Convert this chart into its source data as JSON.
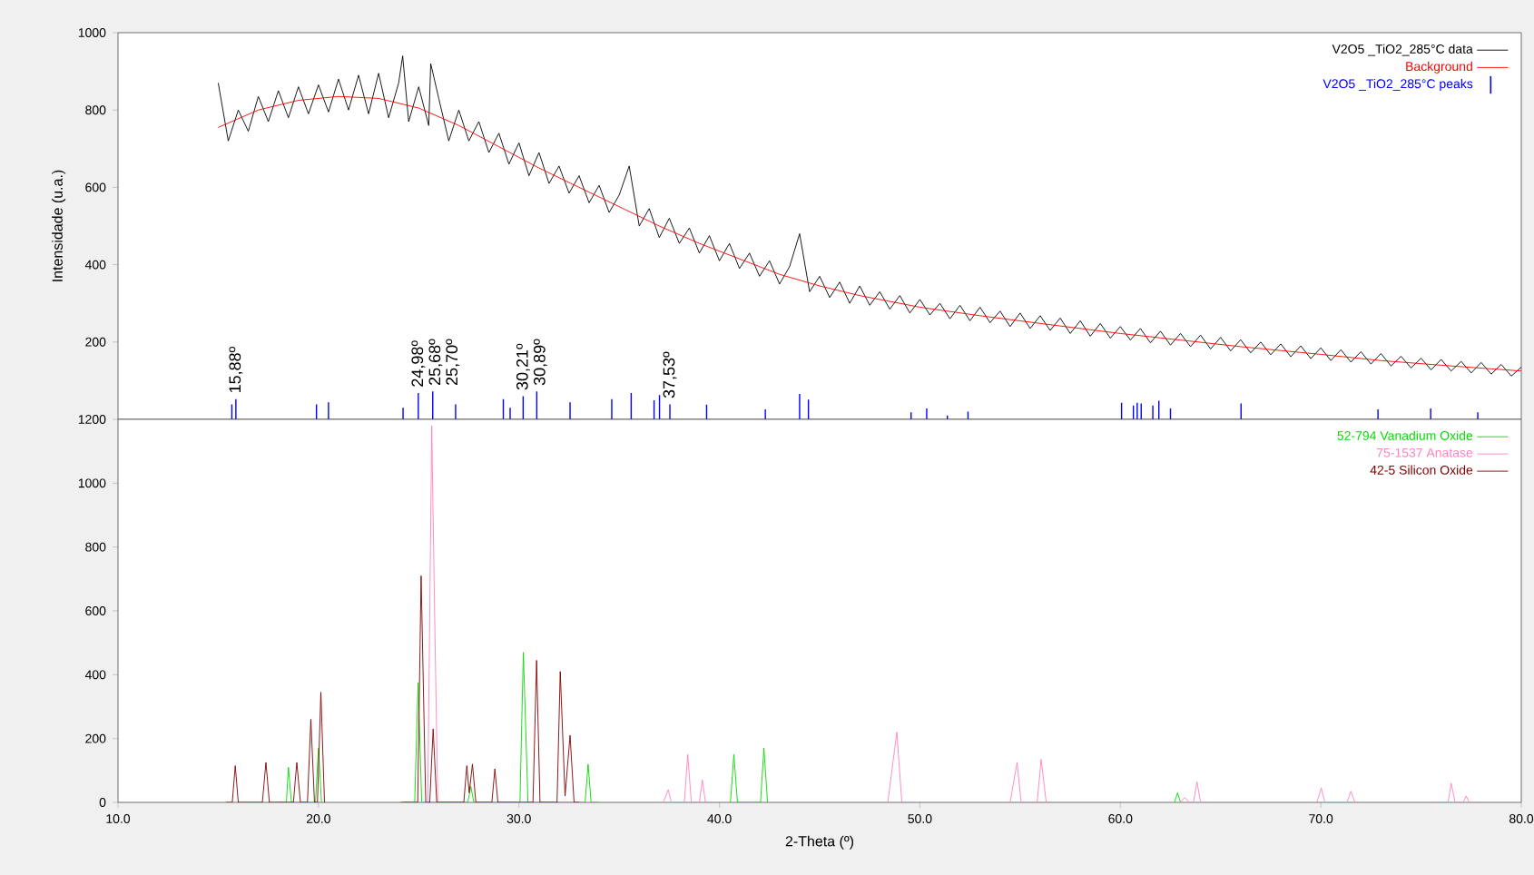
{
  "chart_data": [
    {
      "type": "line",
      "ylabel": "Intensidade (u.a.)",
      "xlim": [
        10,
        80
      ],
      "ylim": [
        0,
        1000
      ],
      "yticks": [
        200,
        400,
        600,
        800,
        1000
      ],
      "tick_labels": "y",
      "legend": "top right",
      "series": [
        {
          "name": "V2O5 _TiO2_285°C data",
          "color": "#000000",
          "x": [
            15,
            15.5,
            16,
            16.5,
            17,
            17.5,
            18,
            18.5,
            19,
            19.5,
            20,
            20.5,
            21,
            21.5,
            22,
            22.5,
            23,
            23.5,
            24,
            24.2,
            24.5,
            25,
            25.5,
            25.6,
            26,
            26.5,
            27,
            27.5,
            28,
            28.5,
            29,
            29.5,
            30,
            30.5,
            31,
            31.5,
            32,
            32.5,
            33,
            33.5,
            34,
            34.5,
            35,
            35.5,
            36,
            36.5,
            37,
            37.5,
            38,
            38.5,
            39,
            39.5,
            40,
            40.5,
            41,
            41.5,
            42,
            42.5,
            43,
            43.5,
            44,
            44.5,
            45,
            45.5,
            46,
            46.5,
            47,
            47.5,
            48,
            48.5,
            49,
            49.5,
            50,
            50.5,
            51,
            51.5,
            52,
            52.5,
            53,
            53.5,
            54,
            54.5,
            55,
            55.5,
            56,
            56.5,
            57,
            57.5,
            58,
            58.5,
            59,
            59.5,
            60,
            60.5,
            61,
            61.5,
            62,
            62.5,
            63,
            63.5,
            64,
            64.5,
            65,
            65.5,
            66,
            66.5,
            67,
            67.5,
            68,
            68.5,
            69,
            69.5,
            70,
            70.5,
            71,
            71.5,
            72,
            72.5,
            73,
            73.5,
            74,
            74.5,
            75,
            75.5,
            76,
            76.5,
            77,
            77.5,
            78,
            78.5,
            79,
            79.5,
            80
          ],
          "values": [
            870,
            720,
            800,
            745,
            835,
            770,
            850,
            780,
            860,
            790,
            865,
            795,
            880,
            800,
            890,
            790,
            895,
            780,
            870,
            940,
            770,
            860,
            760,
            920,
            830,
            720,
            800,
            720,
            770,
            690,
            740,
            660,
            715,
            630,
            690,
            610,
            655,
            585,
            630,
            560,
            605,
            535,
            580,
            655,
            500,
            545,
            470,
            520,
            455,
            495,
            430,
            475,
            410,
            455,
            390,
            430,
            370,
            410,
            350,
            395,
            480,
            330,
            370,
            315,
            355,
            300,
            345,
            295,
            330,
            285,
            320,
            275,
            310,
            270,
            300,
            260,
            295,
            255,
            290,
            250,
            280,
            240,
            275,
            235,
            268,
            230,
            262,
            222,
            255,
            215,
            248,
            210,
            240,
            205,
            235,
            198,
            228,
            192,
            222,
            188,
            218,
            182,
            212,
            177,
            206,
            172,
            200,
            167,
            195,
            162,
            190,
            157,
            185,
            152,
            180,
            148,
            175,
            143,
            170,
            138,
            163,
            133,
            158,
            128,
            155,
            125,
            150,
            120,
            147,
            117,
            142,
            112,
            135
          ]
        },
        {
          "name": "Background",
          "color": "#ff0000",
          "x": [
            15,
            17,
            19,
            21,
            23,
            25,
            27,
            29,
            31,
            33,
            35,
            37,
            39,
            41,
            43,
            45,
            47,
            50,
            53,
            56,
            60,
            63,
            66,
            70,
            73,
            76,
            80
          ],
          "values": [
            755,
            800,
            825,
            835,
            830,
            805,
            760,
            705,
            650,
            600,
            550,
            500,
            455,
            415,
            375,
            345,
            320,
            290,
            268,
            248,
            222,
            205,
            188,
            168,
            152,
            140,
            125
          ]
        },
        {
          "name": "V2O5 _TiO2_285°C peaks",
          "type": "bar",
          "color": "#0000ff",
          "x": [
            15.68,
            15.88,
            19.9,
            20.5,
            24.22,
            24.98,
            25.7,
            26.84,
            29.22,
            29.56,
            30.21,
            30.89,
            32.55,
            34.63,
            35.6,
            36.74,
            37.01,
            37.53,
            39.36,
            42.29,
            44.0,
            44.44,
            49.56,
            50.34,
            51.37,
            52.4,
            60.06,
            60.65,
            60.84,
            61.04,
            61.62,
            61.92,
            62.5,
            66.02,
            72.85,
            75.48,
            77.83
          ],
          "values": [
            39,
            52,
            39,
            44,
            30,
            68,
            72,
            39,
            52,
            30,
            60,
            72,
            44,
            52,
            68,
            49,
            63,
            39,
            38,
            26,
            66,
            51,
            18,
            28,
            10,
            20,
            43,
            36,
            43,
            41,
            36,
            48,
            28,
            41,
            26,
            28,
            18
          ]
        }
      ],
      "annotations": [
        {
          "text": "15,88º",
          "x": 15.88,
          "y": 52
        },
        {
          "text": "24,98º",
          "x": 24.98,
          "y": 68
        },
        {
          "text": "25,68º",
          "x": 25.68,
          "y": 72
        },
        {
          "text": "25,70º",
          "x": 25.7,
          "y": 72
        },
        {
          "text": "30,21º",
          "x": 30.21,
          "y": 60
        },
        {
          "text": "30,89º",
          "x": 30.89,
          "y": 72
        },
        {
          "text": "37,53º",
          "x": 37.53,
          "y": 39
        }
      ]
    },
    {
      "type": "line",
      "xlabel": "2-Theta (º)",
      "xlim": [
        10,
        80
      ],
      "ylim": [
        0,
        1200
      ],
      "yticks": [
        0,
        200,
        400,
        600,
        800,
        1000,
        1200
      ],
      "xticks": [
        {
          "value": 10,
          "label": "10.0"
        },
        {
          "value": 20,
          "label": "20.0"
        },
        {
          "value": 30,
          "label": "30.0"
        },
        {
          "value": 40,
          "label": "40.0"
        },
        {
          "value": 50,
          "label": "50.0"
        },
        {
          "value": 60,
          "label": "60.0"
        },
        {
          "value": 70,
          "label": "70.0"
        },
        {
          "value": 80,
          "label": "80.0"
        }
      ],
      "legend": "top right",
      "series": [
        {
          "name": "52-794 Vanadium Oxide",
          "color": "#00dd00",
          "x": [
            18.0,
            18.4,
            18.5,
            18.65,
            19.85,
            20.0,
            20.15,
            22.5,
            24.3,
            24.8,
            24.97,
            25.15,
            27.45,
            27.6,
            27.75,
            30.05,
            30.22,
            30.45,
            33.3,
            33.45,
            33.6,
            34.0,
            37.0,
            40.55,
            40.72,
            40.9,
            42.05,
            42.22,
            42.4,
            50.0,
            62.7,
            62.85,
            63.0
          ],
          "values": [
            0,
            0,
            110,
            0,
            0,
            170,
            0,
            null,
            0,
            0,
            375,
            0,
            0,
            50,
            0,
            0,
            470,
            0,
            0,
            120,
            0,
            0,
            null,
            0,
            150,
            0,
            0,
            170,
            0,
            null,
            0,
            30,
            0
          ]
        },
        {
          "name": "75-1537 Anatase",
          "color": "#ff80c0",
          "x": [
            24.5,
            25.45,
            25.65,
            25.78,
            25.95,
            26.5,
            30.0,
            37.2,
            37.45,
            37.6,
            38.25,
            38.42,
            38.6,
            39.0,
            39.15,
            39.3,
            39.6,
            44.0,
            48.4,
            48.85,
            49.1,
            49.6,
            52.0,
            54.5,
            54.85,
            55.05,
            55.85,
            56.05,
            56.3,
            56.6,
            60.0,
            63.0,
            63.2,
            63.45,
            63.65,
            63.82,
            64.0,
            64.3,
            67.0,
            69.8,
            70.02,
            70.2,
            71.3,
            71.5,
            71.7,
            71.9,
            74.0,
            75.6,
            76.35,
            76.5,
            76.7,
            77.1,
            77.25,
            77.4,
            77.7
          ],
          "values": [
            0,
            0,
            1180,
            650,
            0,
            0,
            null,
            0,
            40,
            0,
            0,
            150,
            0,
            0,
            70,
            0,
            0,
            null,
            0,
            220,
            0,
            0,
            null,
            0,
            125,
            0,
            0,
            135,
            0,
            0,
            null,
            0,
            15,
            0,
            0,
            65,
            0,
            0,
            null,
            0,
            45,
            0,
            0,
            35,
            0,
            0,
            null,
            0,
            0,
            60,
            0,
            0,
            20,
            0,
            0
          ]
        },
        {
          "name": "42-5 Silicon Oxide",
          "color": "#800000",
          "x": [
            15.4,
            15.7,
            15.85,
            16.0,
            17.2,
            17.38,
            17.55,
            18.75,
            18.92,
            19.1,
            19.45,
            19.62,
            19.8,
            19.95,
            20.12,
            20.3,
            22.5,
            24.1,
            24.95,
            25.12,
            25.35,
            25.55,
            25.72,
            25.9,
            27.25,
            27.4,
            27.52,
            27.68,
            27.85,
            28.65,
            28.8,
            28.95,
            30.7,
            30.88,
            31.05,
            31.9,
            32.06,
            32.3,
            32.55,
            32.75,
            33.0
          ],
          "values": [
            0,
            0,
            115,
            0,
            0,
            125,
            0,
            0,
            125,
            0,
            0,
            260,
            0,
            0,
            345,
            0,
            null,
            0,
            0,
            710,
            0,
            0,
            230,
            0,
            0,
            115,
            30,
            120,
            0,
            0,
            105,
            0,
            0,
            445,
            0,
            0,
            410,
            20,
            210,
            0,
            0
          ]
        }
      ]
    }
  ]
}
